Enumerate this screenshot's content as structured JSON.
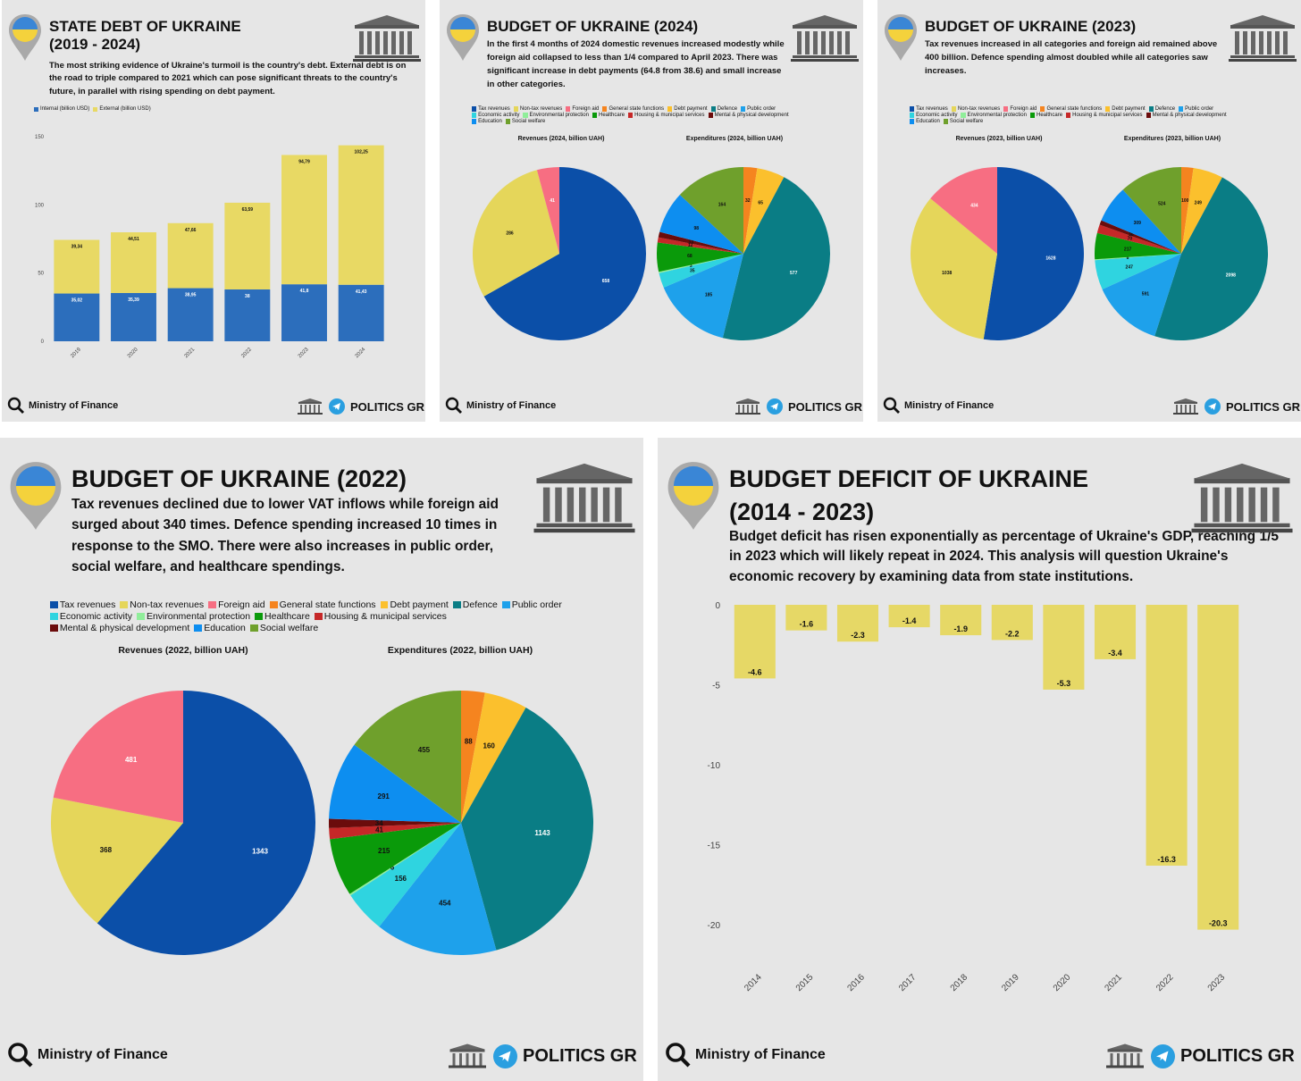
{
  "colors": {
    "tax": "#0b4fa8",
    "nontax": "#e5d65a",
    "foreign": "#f76e82",
    "general": "#f5841f",
    "debtpay": "#fbc02d",
    "defence": "#0a7d85",
    "publicorder": "#1ea1eb",
    "economic": "#2fd4e0",
    "environment": "#90ee9a",
    "health": "#0a9a0a",
    "housing": "#c62828",
    "mental": "#6b0c0c",
    "education": "#0d8ef0",
    "social": "#6fa02c",
    "internal": "#2c6ebc",
    "external": "#e8d964",
    "deficit": "#e6d866"
  },
  "common": {
    "source": "Ministry of Finance",
    "brand": "POLITICS GR"
  },
  "legend_items": [
    "Tax revenues",
    "Non-tax revenues",
    "Foreign aid",
    "General state functions",
    "Debt payment",
    "Defence",
    "Public order",
    "Economic activity",
    "Environmental protection",
    "Healthcare",
    "Housing & municipal services",
    "Mental & physical development",
    "Education",
    "Social welfare"
  ],
  "panel_debt": {
    "title": "STATE DEBT OF UKRAINE",
    "subtitle": "(2019 - 2024)",
    "description": "The most striking evidence of Ukraine's turmoil is the country's debt. External debt is on the road to triple compared to 2021 which can pose significant threats to the country's future, in parallel with rising spending on debt payment."
  },
  "panel_2024": {
    "title": "BUDGET OF UKRAINE (2024)",
    "description": "In the first 4 months of 2024 domestic revenues increased modestly while foreign aid collapsed to less than 1/4 compared to April 2023. There was significant increase in debt payments (64.8 from 38.6) and small increase in other categories."
  },
  "panel_2023": {
    "title": "BUDGET OF UKRAINE (2023)",
    "description": "Tax revenues increased in all categories and foreign aid remained above 400 billion. Defence spending almost doubled while all categories saw increases."
  },
  "panel_2022": {
    "title": "BUDGET OF UKRAINE (2022)",
    "description": "Tax revenues declined due to lower VAT inflows while foreign aid surged about 340 times. Defence spending increased 10 times in response to the SMO. There were also increases in public order, social welfare, and healthcare spendings."
  },
  "panel_deficit": {
    "title": "BUDGET DEFICIT OF UKRAINE",
    "subtitle": "(2014 - 2023)",
    "description": "Budget deficit has risen exponentially as percentage of Ukraine's GDP, reaching 1/5 in 2023 which will likely repeat in 2024.  This analysis will question Ukraine's economic recovery by examining data from state institutions."
  },
  "chart_data": [
    {
      "id": "debt",
      "type": "bar",
      "stacked": true,
      "title": "",
      "categories": [
        "2019",
        "2020",
        "2021",
        "2022",
        "2023",
        "2024"
      ],
      "series": [
        {
          "name": "Internal (billion USD)",
          "values": [
            35.02,
            35.39,
            38.95,
            38,
            41.8,
            41.43
          ],
          "labels": [
            "35,02",
            "35,39",
            "38,95",
            "38",
            "41,8",
            "41,43"
          ]
        },
        {
          "name": "External (billion USD)",
          "values": [
            39.34,
            44.51,
            47.66,
            63.59,
            94.79,
            102.25
          ],
          "labels": [
            "39,34",
            "44,51",
            "47,66",
            "63,59",
            "94,79",
            "102,25"
          ]
        }
      ],
      "yticks": [
        "0",
        "50",
        "100",
        "150"
      ],
      "ylim": [
        0,
        150
      ]
    },
    {
      "id": "rev2024",
      "type": "pie",
      "title": "Revenues (2024, billion UAH)",
      "labels": [
        "Tax revenues",
        "Non-tax revenues",
        "Foreign aid"
      ],
      "values": [
        658,
        286,
        41
      ],
      "value_labels": [
        "658",
        "286",
        "41"
      ]
    },
    {
      "id": "exp2024",
      "type": "pie",
      "title": "Expenditures (2024, billion UAH)",
      "labels": [
        "General state functions",
        "Debt payment",
        "Defence",
        "Public order",
        "Economic activity",
        "Environmental protection",
        "Healthcare",
        "Housing & municipal services",
        "Mental & physical development",
        "Education",
        "Social welfare"
      ],
      "values": [
        32,
        65,
        577,
        185,
        35,
        3,
        68,
        12,
        13,
        98,
        164
      ],
      "value_labels": [
        "32",
        "65",
        "577",
        "185",
        "35",
        "3",
        "68",
        "12",
        "13",
        "98",
        "164"
      ]
    },
    {
      "id": "rev2023",
      "type": "pie",
      "title": "Revenues (2023, billion UAH)",
      "labels": [
        "Tax revenues",
        "Non-tax revenues",
        "Foreign aid"
      ],
      "values": [
        1628,
        1038,
        434
      ],
      "value_labels": [
        "1628",
        "1038",
        "434"
      ]
    },
    {
      "id": "exp2023",
      "type": "pie",
      "title": "Expenditures (2023, billion UAH)",
      "labels": [
        "General state functions",
        "Debt payment",
        "Defence",
        "Public order",
        "Economic activity",
        "Environmental protection",
        "Healthcare",
        "Housing & municipal services",
        "Mental & physical development",
        "Education",
        "Social welfare"
      ],
      "values": [
        100,
        249,
        2098,
        591,
        247,
        8,
        217,
        70,
        38,
        309,
        524
      ],
      "value_labels": [
        "100",
        "249",
        "2098",
        "591",
        "247",
        "8",
        "217",
        "70",
        "38",
        "309",
        "524"
      ]
    },
    {
      "id": "rev2022",
      "type": "pie",
      "title": "Revenues (2022, billion UAH)",
      "labels": [
        "Tax revenues",
        "Non-tax revenues",
        "Foreign aid"
      ],
      "values": [
        1343,
        368,
        481
      ],
      "value_labels": [
        "1343",
        "368",
        "481"
      ]
    },
    {
      "id": "exp2022",
      "type": "pie",
      "title": "Expenditures (2022, billion UAH)",
      "labels": [
        "General state functions",
        "Debt payment",
        "Defence",
        "Public order",
        "Economic activity",
        "Environmental protection",
        "Healthcare",
        "Housing & municipal services",
        "Mental & physical development",
        "Education",
        "Social welfare"
      ],
      "values": [
        88,
        160,
        1143,
        454,
        156,
        6,
        215,
        41,
        34,
        291,
        455
      ],
      "value_labels": [
        "88",
        "160",
        "1143",
        "454",
        "156",
        "6",
        "215",
        "41",
        "34",
        "291",
        "455"
      ]
    },
    {
      "id": "deficit",
      "type": "bar",
      "title": "",
      "categories": [
        "2014",
        "2015",
        "2016",
        "2017",
        "2018",
        "2019",
        "2020",
        "2021",
        "2022",
        "2023"
      ],
      "values": [
        -4.6,
        -1.6,
        -2.3,
        -1.4,
        -1.9,
        -2.2,
        -5.3,
        -3.4,
        -16.3,
        -20.3
      ],
      "value_labels": [
        "-4.6",
        "-1.6",
        "-2.3",
        "-1.4",
        "-1.9",
        "-2.2",
        "-5.3",
        "-3.4",
        "-16.3",
        "-20.3"
      ],
      "yticks": [
        "0",
        "-5",
        "-10",
        "-15",
        "-20"
      ],
      "ylim": [
        -22.5,
        0
      ]
    }
  ]
}
